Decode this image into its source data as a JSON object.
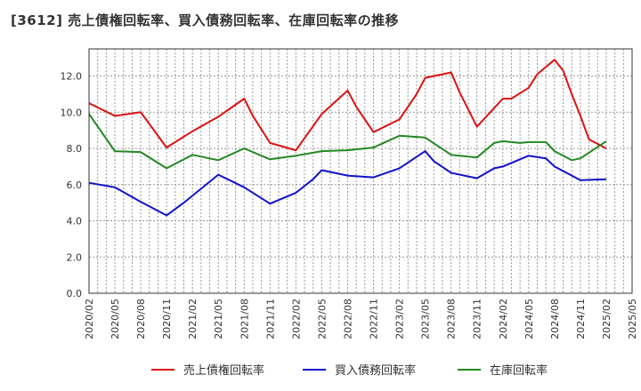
{
  "chart_data": {
    "type": "line",
    "title": "[3612]  売上債権回転率、買入債務回転率、在庫回転率の推移",
    "xlabel": "",
    "ylabel": "",
    "ylim": [
      0,
      13.5
    ],
    "yticks": [
      0,
      2,
      4,
      6,
      8,
      10,
      12
    ],
    "ytick_labels": [
      "0.0",
      "2.0",
      "4.0",
      "6.0",
      "8.0",
      "10.0",
      "12.0"
    ],
    "x_range": [
      "2020/02",
      "2025/05"
    ],
    "xtick_labels": [
      "2020/02",
      "2020/05",
      "2020/08",
      "2020/11",
      "2021/02",
      "2021/05",
      "2021/08",
      "2021/11",
      "2022/02",
      "2022/05",
      "2022/08",
      "2022/11",
      "2023/02",
      "2023/05",
      "2023/08",
      "2023/11",
      "2024/02",
      "2024/05",
      "2024/08",
      "2024/11",
      "2025/02",
      "2025/05"
    ],
    "grid": true,
    "legend_position": "bottom",
    "series": [
      {
        "name": "売上債権回転率",
        "color": "#dd1111",
        "points": [
          [
            "2020/02",
            10.5
          ],
          [
            "2020/05",
            9.8
          ],
          [
            "2020/08",
            10.0
          ],
          [
            "2020/11",
            8.05
          ],
          [
            "2021/02",
            8.95
          ],
          [
            "2021/05",
            9.75
          ],
          [
            "2021/08",
            10.75
          ],
          [
            "2021/09",
            9.8
          ],
          [
            "2021/11",
            8.3
          ],
          [
            "2022/02",
            7.9
          ],
          [
            "2022/05",
            9.9
          ],
          [
            "2022/08",
            11.2
          ],
          [
            "2022/09",
            10.3
          ],
          [
            "2022/11",
            8.9
          ],
          [
            "2023/02",
            9.6
          ],
          [
            "2023/04",
            11.0
          ],
          [
            "2023/05",
            11.9
          ],
          [
            "2023/08",
            12.2
          ],
          [
            "2023/09",
            11.1
          ],
          [
            "2023/11",
            9.2
          ],
          [
            "2024/02",
            10.75
          ],
          [
            "2024/03",
            10.75
          ],
          [
            "2024/05",
            11.35
          ],
          [
            "2024/06",
            12.1
          ],
          [
            "2024/08",
            12.9
          ],
          [
            "2024/09",
            12.3
          ],
          [
            "2024/10",
            11.0
          ],
          [
            "2024/11",
            9.8
          ],
          [
            "2024/12",
            8.5
          ],
          [
            "2025/02",
            8.0
          ]
        ]
      },
      {
        "name": "買入債務回転率",
        "color": "#1111cc",
        "points": [
          [
            "2020/02",
            6.1
          ],
          [
            "2020/05",
            5.85
          ],
          [
            "2020/08",
            5.05
          ],
          [
            "2020/11",
            4.3
          ],
          [
            "2021/01",
            5.0
          ],
          [
            "2021/05",
            6.55
          ],
          [
            "2021/08",
            5.85
          ],
          [
            "2021/11",
            4.95
          ],
          [
            "2022/02",
            5.55
          ],
          [
            "2022/04",
            6.3
          ],
          [
            "2022/05",
            6.8
          ],
          [
            "2022/08",
            6.5
          ],
          [
            "2022/11",
            6.4
          ],
          [
            "2023/02",
            6.9
          ],
          [
            "2023/05",
            7.85
          ],
          [
            "2023/06",
            7.3
          ],
          [
            "2023/08",
            6.65
          ],
          [
            "2023/11",
            6.35
          ],
          [
            "2024/01",
            6.9
          ],
          [
            "2024/02",
            7.0
          ],
          [
            "2024/05",
            7.6
          ],
          [
            "2024/07",
            7.45
          ],
          [
            "2024/08",
            7.0
          ],
          [
            "2024/11",
            6.25
          ],
          [
            "2025/02",
            6.3
          ]
        ]
      },
      {
        "name": "在庫回転率",
        "color": "#228822",
        "points": [
          [
            "2020/02",
            9.9
          ],
          [
            "2020/05",
            7.85
          ],
          [
            "2020/08",
            7.8
          ],
          [
            "2020/11",
            6.9
          ],
          [
            "2021/02",
            7.65
          ],
          [
            "2021/05",
            7.35
          ],
          [
            "2021/08",
            8.0
          ],
          [
            "2021/11",
            7.4
          ],
          [
            "2022/02",
            7.6
          ],
          [
            "2022/05",
            7.85
          ],
          [
            "2022/08",
            7.9
          ],
          [
            "2022/11",
            8.05
          ],
          [
            "2023/02",
            8.7
          ],
          [
            "2023/05",
            8.6
          ],
          [
            "2023/08",
            7.65
          ],
          [
            "2023/11",
            7.5
          ],
          [
            "2024/01",
            8.3
          ],
          [
            "2024/02",
            8.4
          ],
          [
            "2024/04",
            8.3
          ],
          [
            "2024/05",
            8.35
          ],
          [
            "2024/07",
            8.35
          ],
          [
            "2024/08",
            7.85
          ],
          [
            "2024/10",
            7.35
          ],
          [
            "2024/11",
            7.45
          ],
          [
            "2025/02",
            8.4
          ]
        ]
      }
    ]
  }
}
